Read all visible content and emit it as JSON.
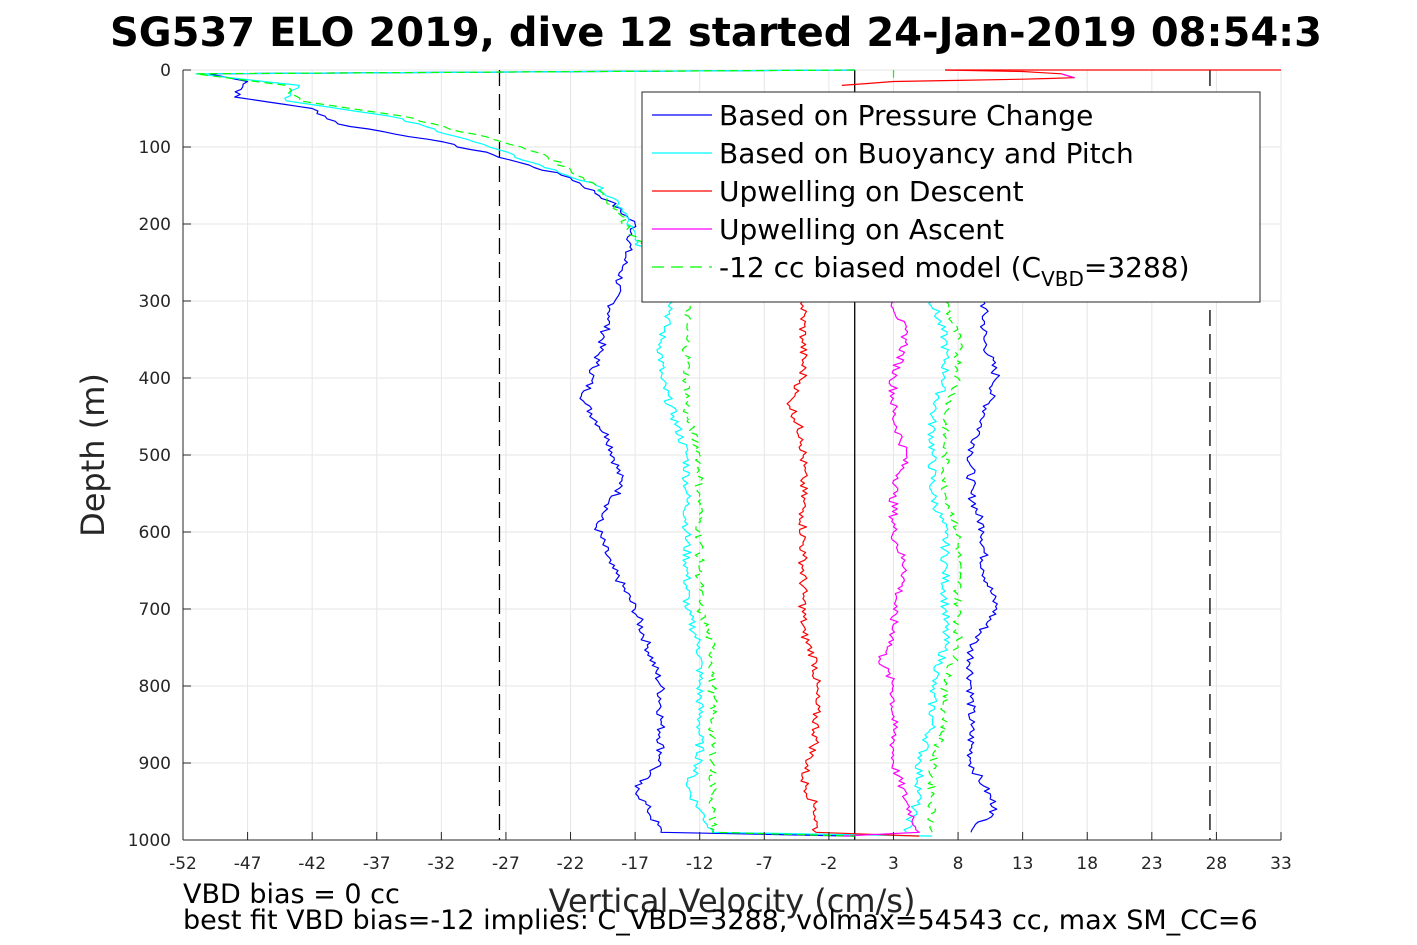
{
  "chart_data": {
    "type": "line",
    "title": "SG537 ELO 2019, dive 12 started 24-Jan-2019 08:54:3",
    "xlabel": "Vertical Velocity (cm/s)",
    "ylabel": "Depth (m)",
    "xlim": [
      -52,
      33
    ],
    "ylim": [
      0,
      1000
    ],
    "y_reversed": true,
    "grid": true,
    "xticks": [
      -52,
      -47,
      -42,
      -37,
      -32,
      -27,
      -22,
      -17,
      -12,
      -7,
      -2,
      3,
      8,
      13,
      18,
      23,
      28,
      33
    ],
    "yticks": [
      0,
      100,
      200,
      300,
      400,
      500,
      600,
      700,
      800,
      900,
      1000
    ],
    "xtick_labels": [
      "-52",
      "-47",
      "-42",
      "-37",
      "-32",
      "-27",
      "-22",
      "-17",
      "-12",
      "-7",
      "-2",
      "3",
      "8",
      "13",
      "18",
      "23",
      "28",
      "33"
    ],
    "ytick_labels": [
      "0",
      "100",
      "200",
      "300",
      "400",
      "500",
      "600",
      "700",
      "800",
      "900",
      "1000"
    ],
    "legend_position": "top-right",
    "legend": [
      {
        "label": "Based on Pressure Change",
        "color": "#0000ff",
        "style": "solid"
      },
      {
        "label": "Based on Buoyancy and Pitch",
        "color": "#00ffff",
        "style": "solid"
      },
      {
        "label": "Upwelling on Descent",
        "color": "#ff0000",
        "style": "solid"
      },
      {
        "label": "Upwelling on Ascent",
        "color": "#ff00ff",
        "style": "solid"
      },
      {
        "label_main": "-12 cc biased model (C",
        "label_sub": "VBD",
        "label_tail": "=3288)",
        "color": "#00ff00",
        "style": "dashed"
      }
    ],
    "vertical_lines": [
      {
        "x": 0,
        "style": "solid",
        "color": "#000000"
      },
      {
        "x": -27.5,
        "style": "dashed",
        "color": "#000000"
      },
      {
        "x": 27.5,
        "style": "dashed",
        "color": "#000000"
      }
    ],
    "series": [
      {
        "name": "Based on Pressure Change",
        "color": "#0000ff",
        "style": "solid",
        "points": [
          [
            0,
            0
          ],
          [
            -50,
            5
          ],
          [
            -47,
            15
          ],
          [
            -48,
            35
          ],
          [
            -42,
            50
          ],
          [
            -40,
            70
          ],
          [
            -33,
            90
          ],
          [
            -28,
            110
          ],
          [
            -22,
            140
          ],
          [
            -19,
            170
          ],
          [
            -17,
            200
          ],
          [
            -18,
            260
          ],
          [
            -19,
            320
          ],
          [
            -20,
            380
          ],
          [
            -21,
            430
          ],
          [
            -19,
            480
          ],
          [
            -18,
            540
          ],
          [
            -20,
            590
          ],
          [
            -19,
            640
          ],
          [
            -17,
            700
          ],
          [
            -16,
            750
          ],
          [
            -15,
            800
          ],
          [
            -15,
            850
          ],
          [
            -15,
            900
          ],
          [
            -17,
            930
          ],
          [
            -16,
            960
          ],
          [
            -15,
            990
          ],
          [
            0,
            995
          ]
        ]
      },
      {
        "name": "Based on Pressure Change",
        "color": "#0000ff",
        "style": "solid",
        "points": [
          [
            10,
            300
          ],
          [
            10,
            350
          ],
          [
            11,
            400
          ],
          [
            10,
            450
          ],
          [
            9,
            500
          ],
          [
            9,
            550
          ],
          [
            10,
            600
          ],
          [
            10,
            650
          ],
          [
            11,
            700
          ],
          [
            9,
            750
          ],
          [
            9,
            800
          ],
          [
            9,
            850
          ],
          [
            9,
            900
          ],
          [
            10,
            930
          ],
          [
            11,
            960
          ],
          [
            9,
            990
          ]
        ]
      },
      {
        "name": "Based on Buoyancy and Pitch",
        "color": "#00ffff",
        "style": "solid",
        "points": [
          [
            0,
            0
          ],
          [
            -51,
            5
          ],
          [
            -43,
            20
          ],
          [
            -44,
            40
          ],
          [
            -36,
            60
          ],
          [
            -30,
            90
          ],
          [
            -25,
            120
          ],
          [
            -20,
            150
          ],
          [
            -18,
            180
          ],
          [
            -17,
            220
          ],
          [
            -15,
            260
          ],
          [
            -14,
            300
          ],
          [
            -15,
            350
          ],
          [
            -15,
            400
          ],
          [
            -14,
            450
          ],
          [
            -13,
            500
          ],
          [
            -13,
            550
          ],
          [
            -13,
            600
          ],
          [
            -13,
            650
          ],
          [
            -13,
            700
          ],
          [
            -12,
            750
          ],
          [
            -12,
            800
          ],
          [
            -12,
            850
          ],
          [
            -12,
            900
          ],
          [
            -13,
            930
          ],
          [
            -12,
            960
          ],
          [
            -11,
            990
          ],
          [
            6,
            995
          ]
        ]
      },
      {
        "name": "Based on Buoyancy and Pitch",
        "color": "#00ffff",
        "style": "solid",
        "points": [
          [
            6,
            300
          ],
          [
            7,
            350
          ],
          [
            7,
            400
          ],
          [
            6,
            450
          ],
          [
            6,
            500
          ],
          [
            6,
            550
          ],
          [
            7,
            600
          ],
          [
            7,
            650
          ],
          [
            7,
            700
          ],
          [
            7,
            750
          ],
          [
            6,
            800
          ],
          [
            6,
            850
          ],
          [
            5,
            900
          ],
          [
            5,
            940
          ],
          [
            4,
            990
          ]
        ]
      },
      {
        "name": "Upwelling on Descent",
        "color": "#ff0000",
        "style": "solid",
        "points": [
          [
            -4,
            300
          ],
          [
            -4,
            350
          ],
          [
            -4,
            400
          ],
          [
            -5,
            430
          ],
          [
            -4,
            480
          ],
          [
            -4,
            530
          ],
          [
            -4,
            580
          ],
          [
            -4,
            630
          ],
          [
            -4,
            680
          ],
          [
            -4,
            730
          ],
          [
            -3,
            770
          ],
          [
            -3,
            820
          ],
          [
            -3,
            870
          ],
          [
            -4,
            920
          ],
          [
            -3,
            960
          ],
          [
            -3,
            990
          ],
          [
            5,
            995
          ]
        ]
      },
      {
        "name": "Upwelling on Descent",
        "color": "#ff0000",
        "style": "solid",
        "points": [
          [
            7,
            0
          ],
          [
            13,
            2
          ],
          [
            16,
            5
          ],
          [
            17,
            10
          ],
          [
            13,
            12
          ],
          [
            3,
            15
          ],
          [
            -1,
            20
          ]
        ]
      },
      {
        "name": "Upwelling on Descent",
        "color": "#ff0000",
        "style": "solid",
        "points": [
          [
            7,
            0
          ],
          [
            33,
            0
          ]
        ]
      },
      {
        "name": "Upwelling on Ascent",
        "color": "#ff00ff",
        "style": "solid",
        "points": [
          [
            3,
            300
          ],
          [
            4,
            350
          ],
          [
            3,
            400
          ],
          [
            3,
            450
          ],
          [
            4,
            500
          ],
          [
            3,
            550
          ],
          [
            3,
            600
          ],
          [
            4,
            650
          ],
          [
            3,
            700
          ],
          [
            3,
            740
          ],
          [
            2,
            765
          ],
          [
            3,
            800
          ],
          [
            3,
            850
          ],
          [
            3,
            900
          ],
          [
            4,
            950
          ],
          [
            5,
            990
          ],
          [
            -1,
            995
          ]
        ]
      },
      {
        "name": "Upwelling on Ascent",
        "color": "#ff00ff",
        "style": "solid",
        "points": [
          [
            16,
            5
          ],
          [
            17,
            10
          ]
        ]
      },
      {
        "name": "-12 cc biased model (CVBD=3288)",
        "color": "#00ff00",
        "style": "dashed",
        "points": [
          [
            0,
            0
          ],
          [
            -51,
            5
          ],
          [
            -44,
            20
          ],
          [
            -43,
            40
          ],
          [
            -35,
            60
          ],
          [
            -28,
            90
          ],
          [
            -24,
            110
          ],
          [
            -20,
            150
          ],
          [
            -18,
            190
          ],
          [
            -17,
            220
          ],
          [
            -14,
            260
          ],
          [
            -13,
            300
          ],
          [
            -13,
            350
          ],
          [
            -13,
            400
          ],
          [
            -13,
            450
          ],
          [
            -12,
            500
          ],
          [
            -12,
            550
          ],
          [
            -12,
            600
          ],
          [
            -12,
            650
          ],
          [
            -12,
            700
          ],
          [
            -11,
            750
          ],
          [
            -11,
            800
          ],
          [
            -11,
            850
          ],
          [
            -11,
            900
          ],
          [
            -11,
            940
          ],
          [
            -11,
            990
          ],
          [
            0,
            995
          ]
        ]
      },
      {
        "name": "-12 cc biased model (CVBD=3288)",
        "color": "#00ff00",
        "style": "dashed",
        "points": [
          [
            7,
            300
          ],
          [
            8,
            350
          ],
          [
            8,
            400
          ],
          [
            7,
            450
          ],
          [
            7,
            500
          ],
          [
            7,
            550
          ],
          [
            8,
            600
          ],
          [
            8,
            650
          ],
          [
            8,
            700
          ],
          [
            8,
            750
          ],
          [
            7,
            800
          ],
          [
            7,
            850
          ],
          [
            6,
            900
          ],
          [
            6,
            950
          ],
          [
            6,
            990
          ]
        ]
      },
      {
        "name": "-12 cc biased model (CVBD=3288)",
        "color": "#00ff00",
        "style": "dashed",
        "points": [
          [
            3,
            0
          ],
          [
            3,
            10
          ]
        ]
      }
    ]
  },
  "footer": {
    "line1": "VBD bias = 0 cc",
    "line2": "best fit VBD bias=-12 implies: C_VBD=3288, volmax=54543 cc, max SM_CC=6"
  }
}
